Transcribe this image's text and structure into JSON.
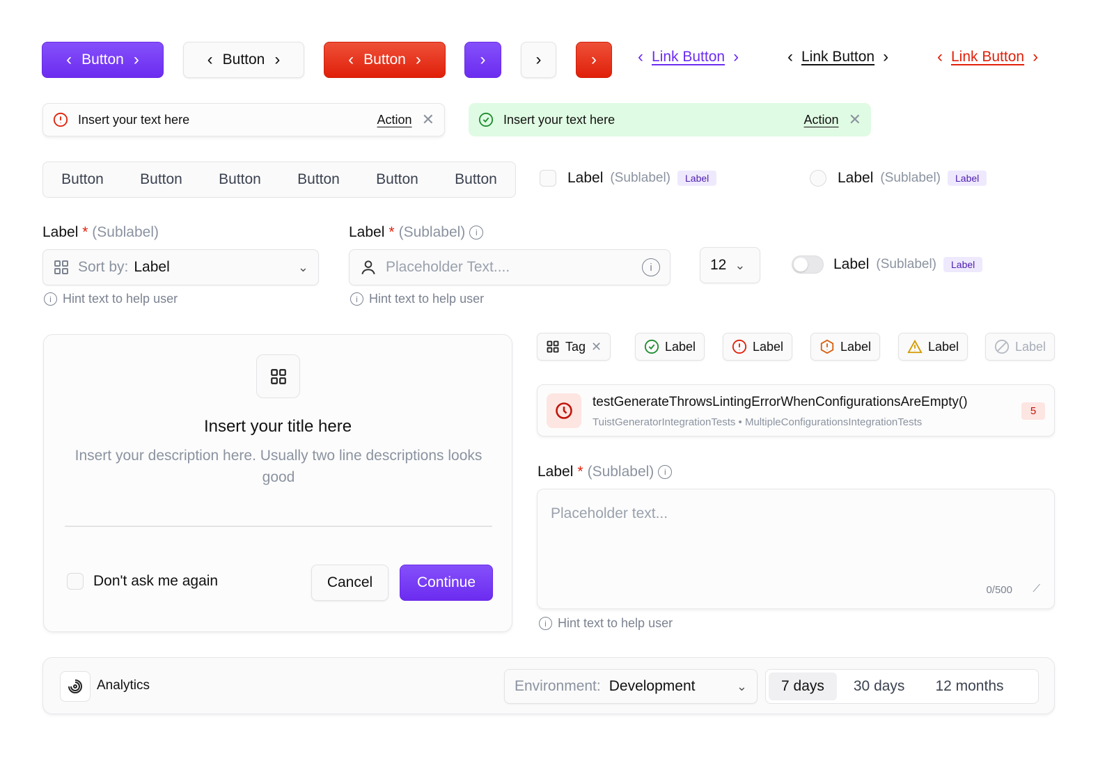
{
  "colors": {
    "primary": "#7A3BF5",
    "danger": "#E5301A",
    "success_bg": "#E0FBE3",
    "success": "#1E8C2E"
  },
  "buttons": {
    "primary": "Button",
    "secondary": "Button",
    "danger": "Button"
  },
  "links": {
    "primary": "Link Button",
    "neutral": "Link Button",
    "danger": "Link Button"
  },
  "alerts": [
    {
      "type": "error",
      "text": "Insert your text here",
      "action": "Action"
    },
    {
      "type": "success",
      "text": "Insert your text here",
      "action": "Action"
    }
  ],
  "segmented": [
    "Button",
    "Button",
    "Button",
    "Button",
    "Button",
    "Button"
  ],
  "checkbox": {
    "label": "Label",
    "sublabel": "(Sublabel)",
    "badge": "Label"
  },
  "radio": {
    "label": "Label",
    "sublabel": "(Sublabel)",
    "badge": "Label"
  },
  "select_field": {
    "label": "Label",
    "required": "*",
    "sublabel": "(Sublabel)",
    "prefix": "Sort by:",
    "value": "Label",
    "hint": "Hint text to help user"
  },
  "text_field": {
    "label": "Label",
    "required": "*",
    "sublabel": "(Sublabel)",
    "placeholder": "Placeholder Text....",
    "hint": "Hint text to help user"
  },
  "number_select": {
    "value": "12"
  },
  "toggle": {
    "label": "Label",
    "sublabel": "(Sublabel)",
    "badge": "Label",
    "on": false
  },
  "modal": {
    "title": "Insert your title here",
    "description": "Insert your description here. Usually two line descriptions looks good",
    "checkbox": "Don't ask me again",
    "cancel": "Cancel",
    "continue": "Continue"
  },
  "tags": [
    {
      "label": "Tag",
      "icon": "grid-icon"
    },
    {
      "label": "Label",
      "icon": "check-circle-icon"
    },
    {
      "label": "Label",
      "icon": "alert-circle-icon"
    },
    {
      "label": "Label",
      "icon": "alert-hexagon-icon"
    },
    {
      "label": "Label",
      "icon": "warning-triangle-icon"
    },
    {
      "label": "Label",
      "icon": "disabled-icon"
    }
  ],
  "test_item": {
    "title": "testGenerateThrowsLintingErrorWhenConfigurationsAreEmpty()",
    "subtitle": "TuistGeneratorIntegrationTests • MultipleConfigurationsIntegrationTests",
    "count": "5"
  },
  "textarea": {
    "label": "Label",
    "required": "*",
    "sublabel": "(Sublabel)",
    "placeholder": "Placeholder text...",
    "counter": "0/500",
    "hint": "Hint text to help user"
  },
  "toolbar": {
    "title": "Analytics",
    "env_prefix": "Environment:",
    "env_value": "Development",
    "ranges": [
      "7 days",
      "30 days",
      "12 months"
    ],
    "selected": "7 days"
  }
}
